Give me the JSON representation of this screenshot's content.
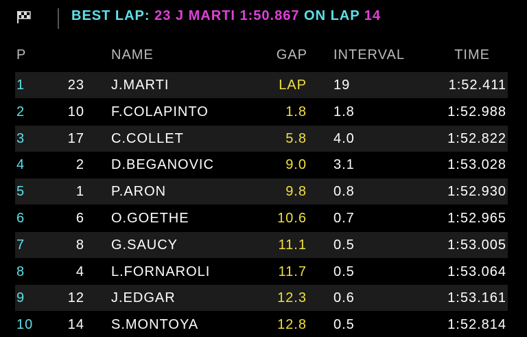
{
  "header": {
    "best_lap_label": "BEST LAP:",
    "best_lap_driver": "23 J MARTI 1:50.867",
    "on_lap_label": "ON LAP",
    "lap_number": "14"
  },
  "table": {
    "columns": {
      "position": "P",
      "name": "NAME",
      "gap": "GAP",
      "interval": "INTERVAL",
      "time": "TIME"
    },
    "rows": [
      [
        "1",
        "23",
        "J.MARTI",
        "LAP",
        "19",
        "1:52.411"
      ],
      [
        "2",
        "10",
        "F.COLAPINTO",
        "1.8",
        "1.8",
        "1:52.988"
      ],
      [
        "3",
        "17",
        "C.COLLET",
        "5.8",
        "4.0",
        "1:52.822"
      ],
      [
        "4",
        "2",
        "D.BEGANOVIC",
        "9.0",
        "3.1",
        "1:53.028"
      ],
      [
        "5",
        "1",
        "P.ARON",
        "9.8",
        "0.8",
        "1:52.930"
      ],
      [
        "6",
        "6",
        "O.GOETHE",
        "10.6",
        "0.7",
        "1:52.965"
      ],
      [
        "7",
        "8",
        "G.SAUCY",
        "11.1",
        "0.5",
        "1:53.005"
      ],
      [
        "8",
        "4",
        "L.FORNAROLI",
        "11.7",
        "0.5",
        "1:53.064"
      ],
      [
        "9",
        "12",
        "J.EDGAR",
        "12.3",
        "0.6",
        "1:53.161"
      ],
      [
        "10",
        "14",
        "S.MONTOYA",
        "12.8",
        "0.5",
        "1:52.814"
      ]
    ]
  }
}
